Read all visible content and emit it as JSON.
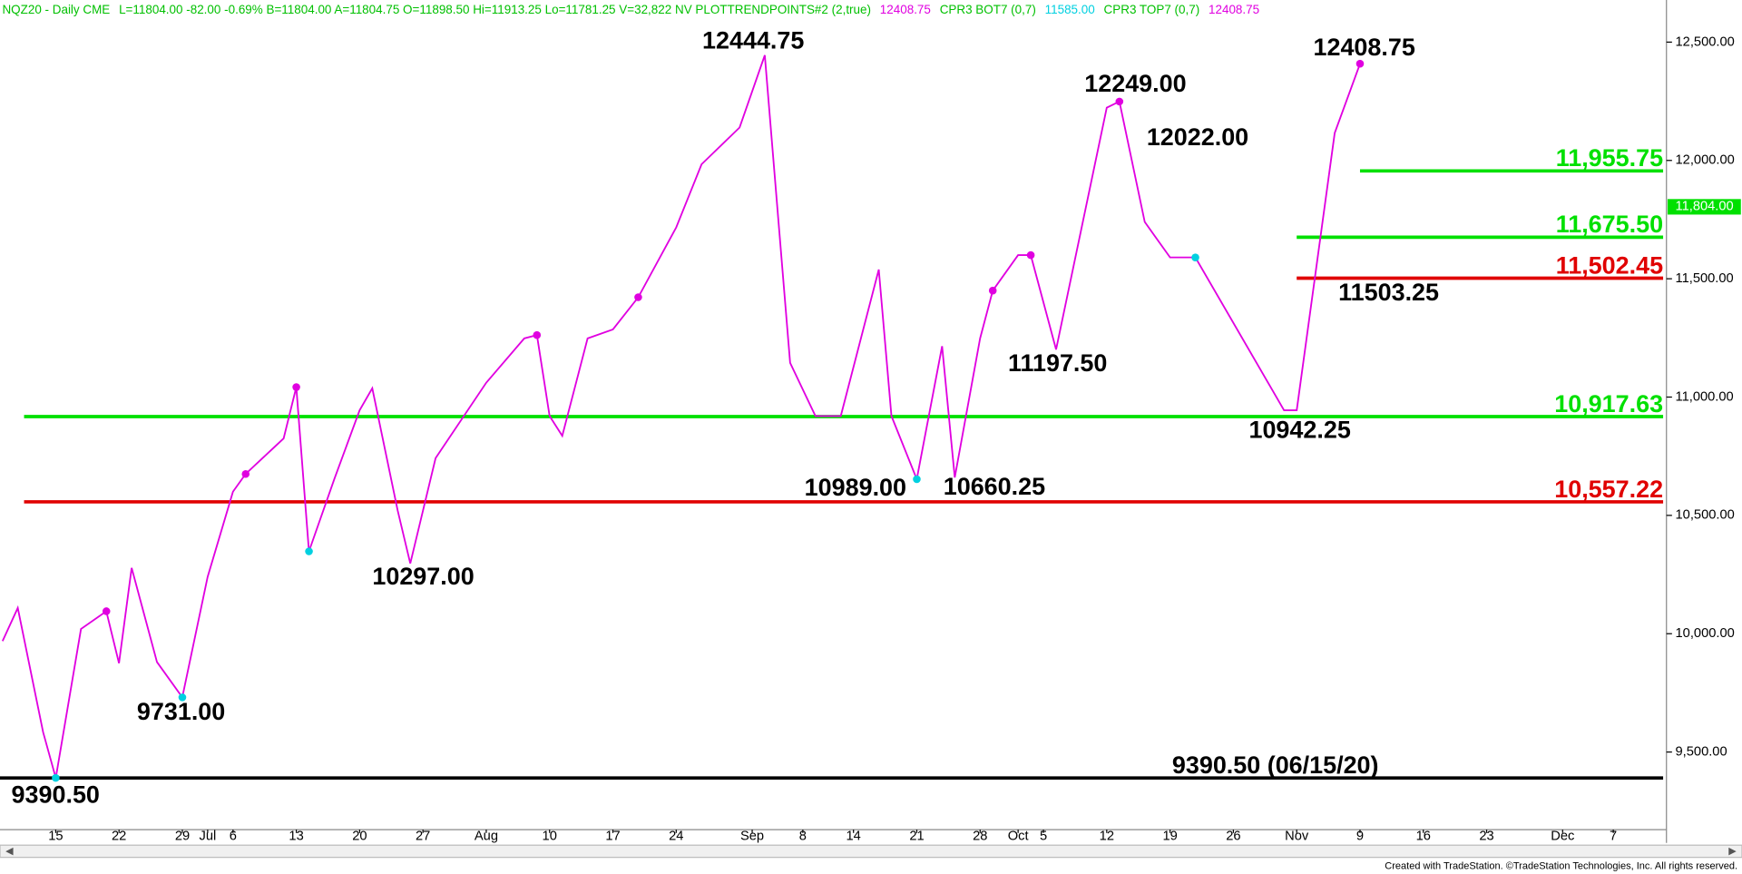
{
  "header": [
    {
      "text": "NQZ20 - Daily  CME",
      "color": "#00c000"
    },
    {
      "text": "L=11804.00  -82.00  -0.69%  B=11804.00  A=11804.75  O=11898.50  Hi=11913.25  Lo=11781.25  V=32,822  NV  PLOTTRENDPOINTS#2 (2,true)",
      "color": "#00c000"
    },
    {
      "text": "12408.75",
      "color": "#e000e0"
    },
    {
      "text": "CPR3 BOT7 (0,7)",
      "color": "#00c000"
    },
    {
      "text": "11585.00",
      "color": "#00d0e0"
    },
    {
      "text": "CPR3 TOP7 (0,7)",
      "color": "#00c000"
    },
    {
      "text": "12408.75",
      "color": "#e000e0"
    }
  ],
  "footer": "Created with TradeStation. ©TradeStation Technologies, Inc. All rights reserved.",
  "chart_data": {
    "type": "line",
    "xlim": [
      -4.4,
      127.2
    ],
    "ylim": [
      9172,
      12678
    ],
    "xticks": [
      {
        "value": 0,
        "label": "15"
      },
      {
        "value": 5,
        "label": "22"
      },
      {
        "value": 10,
        "label": "29"
      },
      {
        "value": 12,
        "label": "Jul"
      },
      {
        "value": 14,
        "label": "6"
      },
      {
        "value": 19,
        "label": "13"
      },
      {
        "value": 24,
        "label": "20"
      },
      {
        "value": 29,
        "label": "27"
      },
      {
        "value": 34,
        "label": "Aug"
      },
      {
        "value": 39,
        "label": "10"
      },
      {
        "value": 44,
        "label": "17"
      },
      {
        "value": 49,
        "label": "24"
      },
      {
        "value": 55,
        "label": "Sep"
      },
      {
        "value": 59,
        "label": "8"
      },
      {
        "value": 63,
        "label": "14"
      },
      {
        "value": 68,
        "label": "21"
      },
      {
        "value": 73,
        "label": "28"
      },
      {
        "value": 76,
        "label": "Oct"
      },
      {
        "value": 78,
        "label": "5"
      },
      {
        "value": 83,
        "label": "12"
      },
      {
        "value": 88,
        "label": "19"
      },
      {
        "value": 93,
        "label": "26"
      },
      {
        "value": 98,
        "label": "Nov"
      },
      {
        "value": 103,
        "label": "9"
      },
      {
        "value": 108,
        "label": "16"
      },
      {
        "value": 113,
        "label": "23"
      },
      {
        "value": 119,
        "label": "Dec"
      },
      {
        "value": 123,
        "label": "7"
      }
    ],
    "yticks": [
      {
        "value": 9500,
        "label": "9,500.00"
      },
      {
        "value": 10000,
        "label": "10,000.00"
      },
      {
        "value": 10500,
        "label": "10,500.00"
      },
      {
        "value": 11000,
        "label": "11,000.00"
      },
      {
        "value": 11500,
        "label": "11,500.00"
      },
      {
        "value": 12000,
        "label": "12,000.00"
      },
      {
        "value": 12500,
        "label": "12,500.00"
      }
    ],
    "series": [
      {
        "name": "PLOTTRENDPOINTS#2",
        "color": "#e000e0",
        "x": [
          -4.2,
          -3,
          -1,
          0,
          2,
          4,
          5,
          6,
          8,
          10,
          12,
          14,
          15,
          18,
          19,
          20,
          22,
          24,
          25,
          27,
          28,
          30,
          34,
          37,
          38,
          39,
          40,
          42,
          44,
          46,
          49,
          51,
          54,
          56,
          58,
          60,
          62,
          65,
          66,
          68,
          70,
          71,
          73,
          74,
          76,
          77,
          79,
          83,
          84,
          86,
          88,
          90,
          97,
          98,
          101,
          103
        ],
        "values": [
          9969,
          10109,
          9584,
          9390.5,
          10020,
          10095,
          9875,
          10278,
          9880,
          9731,
          10240,
          10600,
          10675,
          10825,
          11042,
          10348,
          10653,
          10944,
          11037,
          10522,
          10297,
          10742,
          11061,
          11248,
          11262,
          10920,
          10836,
          11248,
          11286,
          11422,
          11717,
          11984,
          12139,
          12444.75,
          11145,
          10920,
          10920,
          11539,
          10920,
          10653,
          11215,
          10660.25,
          11248,
          11450,
          11600,
          11600,
          11201,
          12223,
          12249,
          11740,
          11590,
          11590,
          10944,
          10944,
          12116,
          12408.75
        ]
      }
    ],
    "pivot_highs": {
      "color": "#e000e0",
      "x": [
        4,
        15,
        19,
        38,
        46,
        74,
        77,
        84,
        103
      ],
      "values": [
        10095,
        10675,
        11042,
        11262,
        11422,
        11450,
        11600,
        12249,
        12408.75
      ]
    },
    "pivot_lows": {
      "color": "#00d0e0",
      "x": [
        0,
        10,
        20,
        68,
        90
      ],
      "values": [
        9390.5,
        9731,
        10348,
        10653,
        11590
      ]
    },
    "levels": [
      {
        "value": 11955.75,
        "label": "11,955.75",
        "color": "#00e000",
        "x_start": 103
      },
      {
        "value": 11675.5,
        "label": "11,675.50",
        "color": "#00e000",
        "x_start": 98
      },
      {
        "value": 11502.45,
        "label": "11,502.45",
        "color": "#e00000",
        "x_start": 98
      },
      {
        "value": 10917.63,
        "label": "10,917.63",
        "color": "#00e000",
        "x_start": -2.5
      },
      {
        "value": 10557.22,
        "label": "10,557.22",
        "color": "#e00000",
        "x_start": -2.5
      },
      {
        "value": 9390.5,
        "label": "9390.50 (06/15/20)",
        "color": "#000000",
        "x_start": -4.4
      }
    ],
    "annotations": [
      "12444.75",
      "12249.00",
      "12022.00",
      "12408.75",
      "11503.25",
      "11197.50",
      "10942.25",
      "10989.00",
      "10660.25",
      "10297.00",
      "9731.00",
      "9390.50"
    ],
    "last_price": {
      "value": 11804,
      "label": "11,804.00",
      "color": "#00e000"
    }
  }
}
